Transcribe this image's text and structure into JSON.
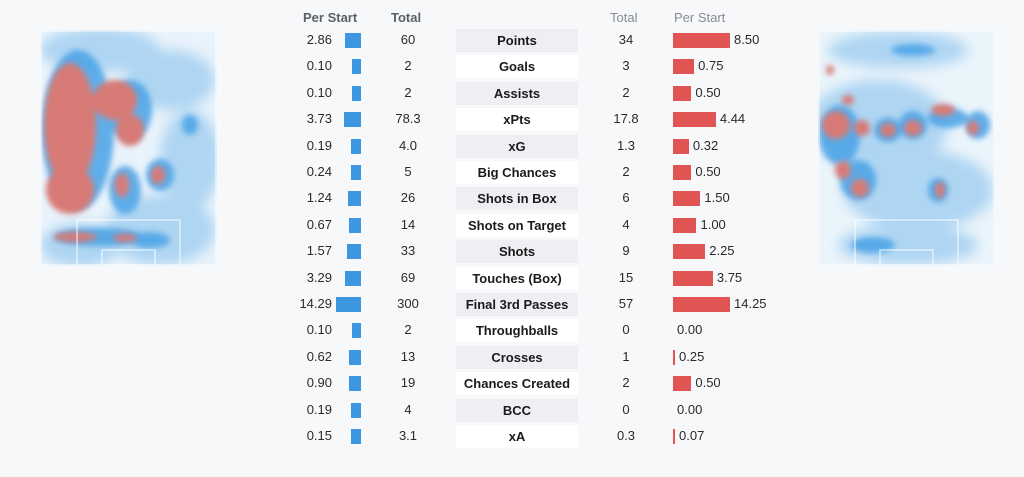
{
  "headers": {
    "left_per_start": "Per Start",
    "left_total": "Total",
    "right_total": "Total",
    "right_per_start": "Per Start"
  },
  "colors": {
    "left_bar": "#3d96e0",
    "right_bar": "#e05454",
    "heat_low": "#cfe6f8",
    "heat_mid": "#4aa3e6",
    "heat_high": "#d87a76"
  },
  "chart_data": {
    "type": "bar",
    "categories": [
      "Points",
      "Goals",
      "Assists",
      "xPts",
      "xG",
      "Big Chances",
      "Shots in Box",
      "Shots on Target",
      "Shots",
      "Touches (Box)",
      "Final 3rd Passes",
      "Throughballs",
      "Crosses",
      "Chances Created",
      "BCC",
      "xA"
    ],
    "left_per_start_labels": [
      "2.86",
      "0.10",
      "0.10",
      "3.73",
      "0.19",
      "0.24",
      "1.24",
      "0.67",
      "1.57",
      "3.29",
      "14.29",
      "0.10",
      "0.62",
      "0.90",
      "0.19",
      "0.15"
    ],
    "left_total_labels": [
      "60",
      "2",
      "2",
      "78.3",
      "4.0",
      "5",
      "26",
      "14",
      "33",
      "69",
      "300",
      "2",
      "13",
      "19",
      "4",
      "3.1"
    ],
    "right_total_labels": [
      "34",
      "3",
      "2",
      "17.8",
      "1.3",
      "2",
      "6",
      "4",
      "9",
      "15",
      "57",
      "0",
      "1",
      "2",
      "0",
      "0.3"
    ],
    "right_per_start_labels": [
      "8.50",
      "0.75",
      "0.50",
      "4.44",
      "0.32",
      "0.50",
      "1.50",
      "1.00",
      "2.25",
      "3.75",
      "14.25",
      "0.00",
      "0.25",
      "0.50",
      "0.00",
      "0.07"
    ],
    "series": [
      {
        "values": [
          2.86,
          0.1,
          0.1,
          3.73,
          0.19,
          0.24,
          1.24,
          0.67,
          1.57,
          3.29,
          14.29,
          0.1,
          0.62,
          0.9,
          0.19,
          0.15
        ]
      },
      {
        "values": [
          8.5,
          0.75,
          0.5,
          4.44,
          0.32,
          0.5,
          1.5,
          1.0,
          2.25,
          3.75,
          14.25,
          0.0,
          0.25,
          0.5,
          0.0,
          0.07
        ]
      }
    ]
  }
}
